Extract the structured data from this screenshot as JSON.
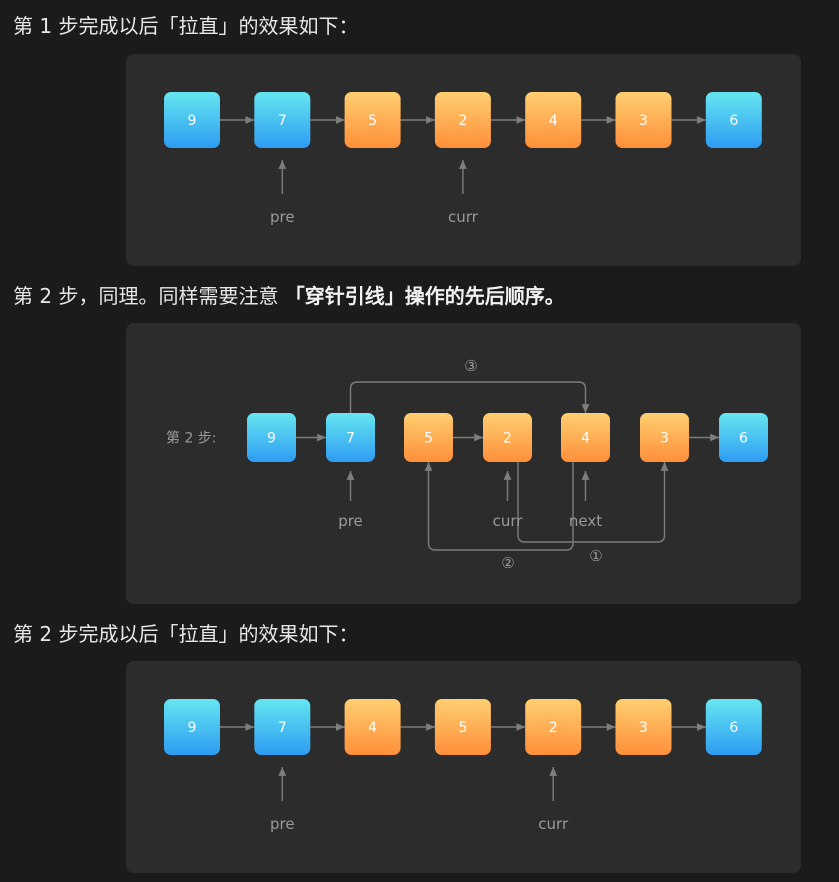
{
  "paragraphs": {
    "p1": "第 1 步完成以后「拉直」的效果如下：",
    "p2_plain": "第 2 步，同理。同样需要注意 ",
    "p2_bold": "「穿针引线」操作的先后顺序。",
    "p3": "第 2 步完成以后「拉直」的效果如下："
  },
  "diagram1": {
    "nodes": [
      {
        "value": "9",
        "color": "blue"
      },
      {
        "value": "7",
        "color": "blue"
      },
      {
        "value": "5",
        "color": "orange"
      },
      {
        "value": "2",
        "color": "orange"
      },
      {
        "value": "4",
        "color": "orange"
      },
      {
        "value": "3",
        "color": "orange"
      },
      {
        "value": "6",
        "color": "blue"
      }
    ],
    "pointers": [
      {
        "label": "pre",
        "node_index": 1
      },
      {
        "label": "curr",
        "node_index": 3
      }
    ]
  },
  "diagram2": {
    "step_label": "第 2 步:",
    "nodes": [
      {
        "value": "9",
        "color": "blue"
      },
      {
        "value": "7",
        "color": "blue"
      },
      {
        "value": "5",
        "color": "orange"
      },
      {
        "value": "2",
        "color": "orange"
      },
      {
        "value": "4",
        "color": "orange"
      },
      {
        "value": "3",
        "color": "orange"
      },
      {
        "value": "6",
        "color": "blue"
      }
    ],
    "pointers": [
      {
        "label": "pre",
        "node_index": 1
      },
      {
        "label": "curr",
        "node_index": 3
      },
      {
        "label": "next",
        "node_index": 4
      }
    ],
    "operations": [
      {
        "label": "①",
        "description": "2 → 3"
      },
      {
        "label": "②",
        "description": "4 → 5"
      },
      {
        "label": "③",
        "description": "7 → 4"
      }
    ]
  },
  "diagram3": {
    "nodes": [
      {
        "value": "9",
        "color": "blue"
      },
      {
        "value": "7",
        "color": "blue"
      },
      {
        "value": "4",
        "color": "orange"
      },
      {
        "value": "5",
        "color": "orange"
      },
      {
        "value": "2",
        "color": "orange"
      },
      {
        "value": "3",
        "color": "orange"
      },
      {
        "value": "6",
        "color": "blue"
      }
    ],
    "pointers": [
      {
        "label": "pre",
        "node_index": 1
      },
      {
        "label": "curr",
        "node_index": 4
      }
    ]
  },
  "colors": {
    "blue_top": "#66e6f0",
    "blue_bottom": "#2e9cf2",
    "orange_top": "#ffcf70",
    "orange_bottom": "#ff8f3a",
    "arrow": "#7d7d7d",
    "pointer_text": "#9a9a9a"
  }
}
